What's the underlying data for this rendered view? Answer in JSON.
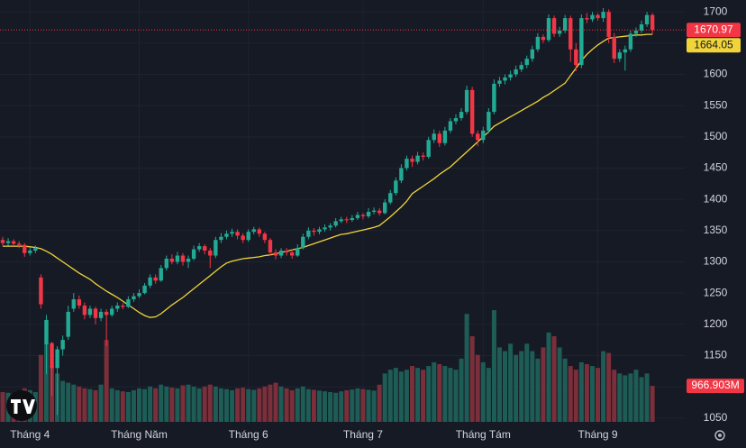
{
  "chart_data": {
    "type": "candlestick",
    "open": [
      1335,
      1330,
      1333,
      1329,
      1327,
      1314,
      1318,
      1275,
      1168,
      1170,
      1130,
      1160,
      1180,
      1225,
      1240,
      1230,
      1215,
      1225,
      1210,
      1220,
      1215,
      1225,
      1230,
      1228,
      1240,
      1245,
      1250,
      1262,
      1275,
      1270,
      1290,
      1305,
      1300,
      1310,
      1300,
      1305,
      1320,
      1325,
      1318,
      1310,
      1335,
      1340,
      1345,
      1348,
      1342,
      1335,
      1348,
      1352,
      1345,
      1335,
      1315,
      1310,
      1318,
      1315,
      1310,
      1322,
      1340,
      1350,
      1348,
      1352,
      1355,
      1358,
      1365,
      1368,
      1367,
      1370,
      1375,
      1373,
      1380,
      1382,
      1378,
      1395,
      1410,
      1430,
      1450,
      1465,
      1460,
      1470,
      1468,
      1495,
      1505,
      1490,
      1510,
      1525,
      1530,
      1540,
      1575,
      1505,
      1495,
      1510,
      1540,
      1585,
      1590,
      1595,
      1600,
      1608,
      1615,
      1625,
      1640,
      1660,
      1655,
      1690,
      1665,
      1670,
      1690,
      1640,
      1615,
      1690,
      1688,
      1695,
      1690,
      1700,
      1660,
      1625,
      1635,
      1640,
      1665,
      1670,
      1680,
      1695
    ],
    "high": [
      1340,
      1338,
      1336,
      1333,
      1330,
      1322,
      1326,
      1280,
      1215,
      1172,
      1165,
      1182,
      1230,
      1250,
      1246,
      1235,
      1230,
      1228,
      1225,
      1224,
      1230,
      1235,
      1234,
      1245,
      1250,
      1256,
      1266,
      1280,
      1280,
      1295,
      1310,
      1312,
      1316,
      1314,
      1310,
      1326,
      1330,
      1328,
      1322,
      1340,
      1346,
      1350,
      1353,
      1352,
      1346,
      1352,
      1356,
      1355,
      1348,
      1338,
      1320,
      1322,
      1322,
      1320,
      1328,
      1345,
      1355,
      1354,
      1356,
      1360,
      1362,
      1370,
      1372,
      1372,
      1375,
      1380,
      1378,
      1386,
      1387,
      1386,
      1400,
      1415,
      1435,
      1456,
      1470,
      1470,
      1476,
      1475,
      1500,
      1512,
      1510,
      1516,
      1530,
      1536,
      1546,
      1582,
      1580,
      1510,
      1516,
      1546,
      1592,
      1596,
      1600,
      1606,
      1614,
      1620,
      1630,
      1646,
      1666,
      1664,
      1696,
      1694,
      1676,
      1695,
      1694,
      1650,
      1696,
      1698,
      1700,
      1698,
      1706,
      1704,
      1666,
      1640,
      1646,
      1670,
      1675,
      1686,
      1700,
      1698
    ],
    "low": [
      1325,
      1326,
      1325,
      1322,
      1308,
      1310,
      1314,
      1225,
      1120,
      1085,
      1055,
      1150,
      1175,
      1220,
      1225,
      1208,
      1210,
      1200,
      1205,
      1165,
      1212,
      1220,
      1224,
      1226,
      1236,
      1242,
      1248,
      1258,
      1265,
      1268,
      1286,
      1296,
      1296,
      1294,
      1290,
      1302,
      1316,
      1312,
      1290,
      1306,
      1330,
      1336,
      1340,
      1336,
      1330,
      1332,
      1344,
      1340,
      1330,
      1310,
      1304,
      1306,
      1310,
      1305,
      1308,
      1320,
      1336,
      1342,
      1344,
      1348,
      1350,
      1355,
      1362,
      1362,
      1364,
      1367,
      1368,
      1370,
      1376,
      1374,
      1376,
      1392,
      1406,
      1426,
      1446,
      1452,
      1456,
      1462,
      1465,
      1490,
      1484,
      1486,
      1506,
      1520,
      1526,
      1536,
      1500,
      1485,
      1490,
      1506,
      1536,
      1580,
      1584,
      1590,
      1596,
      1604,
      1610,
      1620,
      1636,
      1650,
      1652,
      1660,
      1660,
      1666,
      1620,
      1605,
      1610,
      1682,
      1684,
      1686,
      1684,
      1650,
      1618,
      1620,
      1606,
      1636,
      1660,
      1666,
      1676,
      1664
    ],
    "close": [
      1330,
      1333,
      1329,
      1327,
      1314,
      1318,
      1322,
      1232,
      1207,
      1130,
      1160,
      1175,
      1220,
      1240,
      1230,
      1215,
      1225,
      1210,
      1220,
      1215,
      1225,
      1230,
      1228,
      1240,
      1245,
      1250,
      1262,
      1275,
      1270,
      1290,
      1305,
      1300,
      1310,
      1300,
      1305,
      1320,
      1325,
      1318,
      1310,
      1335,
      1340,
      1345,
      1348,
      1342,
      1335,
      1348,
      1352,
      1345,
      1335,
      1315,
      1310,
      1318,
      1315,
      1310,
      1322,
      1340,
      1350,
      1348,
      1352,
      1355,
      1358,
      1365,
      1368,
      1367,
      1370,
      1375,
      1373,
      1380,
      1382,
      1378,
      1395,
      1410,
      1430,
      1450,
      1465,
      1460,
      1470,
      1468,
      1495,
      1505,
      1490,
      1510,
      1525,
      1530,
      1540,
      1575,
      1505,
      1495,
      1510,
      1540,
      1585,
      1590,
      1595,
      1600,
      1608,
      1615,
      1625,
      1640,
      1660,
      1655,
      1690,
      1665,
      1670,
      1690,
      1640,
      1615,
      1690,
      1688,
      1695,
      1690,
      1700,
      1660,
      1625,
      1635,
      1640,
      1665,
      1670,
      1680,
      1695,
      1670.97
    ],
    "volume": [
      800,
      780,
      760,
      820,
      900,
      850,
      800,
      1800,
      2100,
      1500,
      1300,
      1100,
      1050,
      1000,
      950,
      900,
      880,
      850,
      1000,
      2200,
      900,
      850,
      820,
      800,
      850,
      900,
      880,
      950,
      900,
      1000,
      950,
      920,
      900,
      980,
      1000,
      950,
      900,
      950,
      1000,
      950,
      900,
      880,
      850,
      900,
      920,
      880,
      860,
      900,
      950,
      1000,
      1050,
      950,
      900,
      850,
      900,
      950,
      880,
      860,
      840,
      820,
      800,
      780,
      820,
      850,
      870,
      900,
      880,
      860,
      840,
      1000,
      1300,
      1400,
      1450,
      1350,
      1400,
      1500,
      1450,
      1400,
      1500,
      1600,
      1550,
      1500,
      1450,
      1400,
      1700,
      2900,
      2300,
      1800,
      1600,
      1450,
      3000,
      2000,
      1900,
      2100,
      1800,
      1900,
      2100,
      1900,
      1700,
      2000,
      2400,
      2300,
      2000,
      1700,
      1500,
      1400,
      1600,
      1550,
      1500,
      1450,
      1900,
      1850,
      1400,
      1300,
      1250,
      1300,
      1400,
      1200,
      1300,
      966.903
    ],
    "volume_last_label": "966.903M",
    "ma": {
      "color": "#f0d43a",
      "values": [
        1325,
        1325,
        1325,
        1325,
        1325,
        1324,
        1323,
        1321,
        1317,
        1312,
        1306,
        1300,
        1294,
        1288,
        1282,
        1277,
        1272,
        1265,
        1259,
        1253,
        1248,
        1243,
        1237,
        1231,
        1225,
        1219,
        1214,
        1211,
        1212,
        1217,
        1224,
        1231,
        1237,
        1243,
        1250,
        1257,
        1264,
        1271,
        1278,
        1285,
        1292,
        1298,
        1301,
        1303,
        1305,
        1306,
        1307,
        1308,
        1310,
        1311,
        1313,
        1315,
        1317,
        1319,
        1321,
        1323,
        1326,
        1329,
        1332,
        1335,
        1338,
        1341,
        1344,
        1345,
        1347,
        1349,
        1351,
        1353,
        1355,
        1358,
        1365,
        1372,
        1380,
        1388,
        1397,
        1409,
        1415,
        1421,
        1427,
        1433,
        1440,
        1446,
        1452,
        1460,
        1468,
        1476,
        1484,
        1492,
        1500,
        1508,
        1517,
        1522,
        1527,
        1532,
        1537,
        1542,
        1547,
        1552,
        1557,
        1563,
        1568,
        1574,
        1580,
        1586,
        1598,
        1610,
        1622,
        1632,
        1640,
        1647,
        1653,
        1658,
        1659,
        1660,
        1661,
        1662,
        1663,
        1663,
        1664,
        1664.05
      ]
    },
    "up_color": "#22ab94",
    "down_color": "#f23645",
    "volume_up_color": "#1e5c56",
    "volume_down_color": "#7a2f3a",
    "ylim": [
      1041,
      1719
    ],
    "yticks": [
      1050,
      1100,
      1150,
      1200,
      1250,
      1300,
      1350,
      1400,
      1450,
      1500,
      1550,
      1600,
      1650,
      1700
    ],
    "xticks": [
      {
        "value": 5,
        "label": "Tháng 4"
      },
      {
        "value": 25,
        "label": "Tháng Năm"
      },
      {
        "value": 45,
        "label": "Tháng 6"
      },
      {
        "value": 66,
        "label": "Tháng 7"
      },
      {
        "value": 88,
        "label": "Tháng Tám"
      },
      {
        "value": 109,
        "label": "Tháng 9"
      }
    ],
    "grid": true
  }
}
